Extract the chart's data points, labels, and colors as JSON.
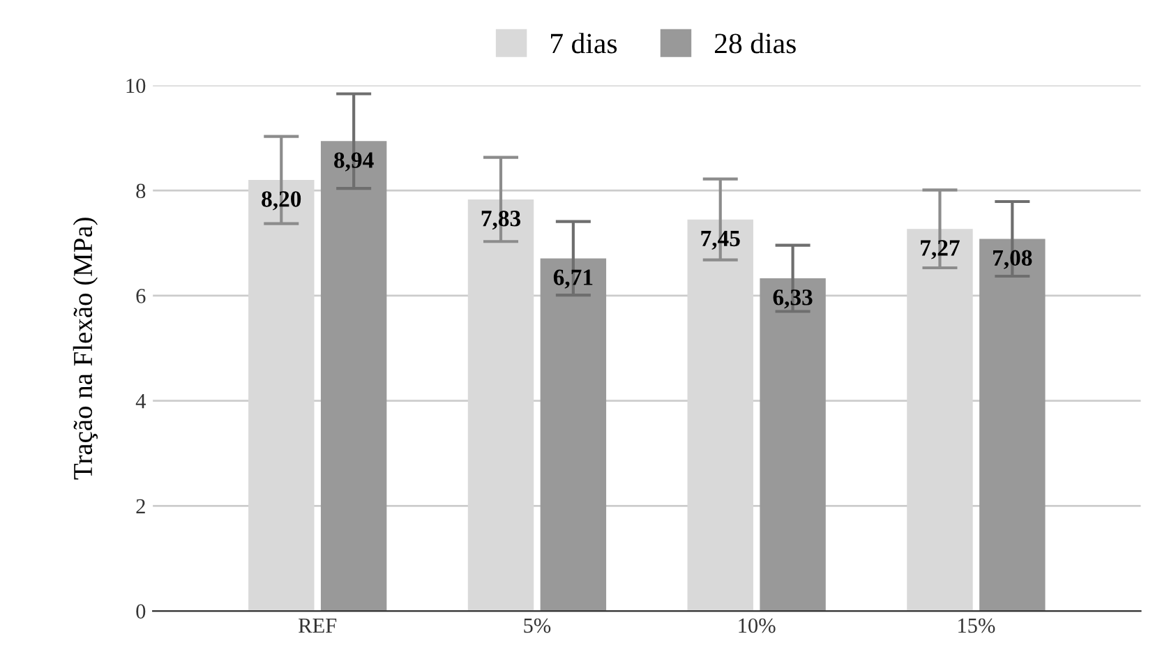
{
  "chart_data": {
    "type": "bar",
    "ylabel": "Tração na Flexão (MPa)",
    "categories": [
      "REF",
      "5%",
      "10%",
      "15%"
    ],
    "series": [
      {
        "name": "7 dias",
        "color": "#d9d9d9",
        "values": [
          8.2,
          7.83,
          7.45,
          7.27
        ],
        "value_labels": [
          "8,20",
          "7,83",
          "7,45",
          "7,27"
        ],
        "errors": [
          0.83,
          0.8,
          0.77,
          0.74
        ]
      },
      {
        "name": "28 dias",
        "color": "#999999",
        "values": [
          8.94,
          6.71,
          6.33,
          7.08
        ],
        "value_labels": [
          "8,94",
          "6,71",
          "6,33",
          "7,08"
        ],
        "errors": [
          0.9,
          0.7,
          0.63,
          0.71
        ]
      }
    ],
    "ylim": [
      0,
      10
    ],
    "yticks": [
      0,
      2,
      4,
      6,
      8,
      10
    ],
    "grid": "y",
    "legend": "top"
  }
}
